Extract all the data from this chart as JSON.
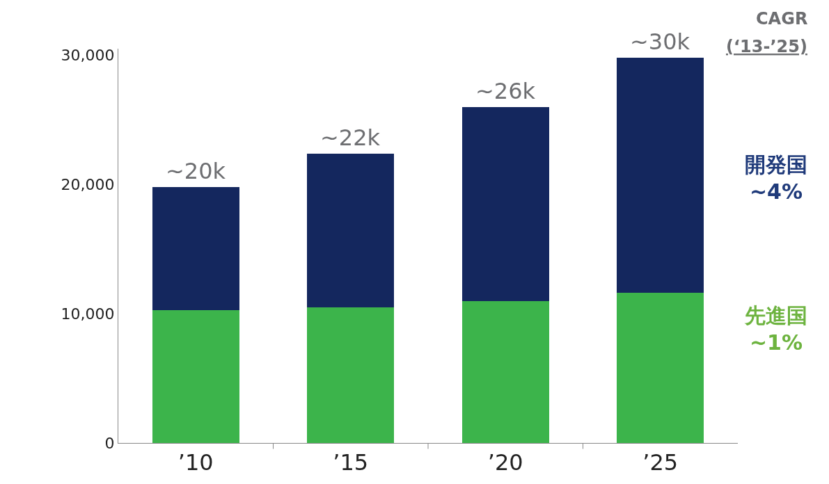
{
  "chart_data": {
    "type": "bar",
    "stacked": true,
    "categories": [
      "’10",
      "’15",
      "’20",
      "’25"
    ],
    "series": [
      {
        "name": "先進国",
        "color": "#3cb44b",
        "values": [
          10300,
          10500,
          11000,
          11600
        ]
      },
      {
        "name": "開発国",
        "color": "#14275e",
        "values": [
          9500,
          11900,
          15000,
          18200
        ]
      }
    ],
    "totals": [
      "~20k",
      "~22k",
      "~26k",
      "~30k"
    ],
    "ylim": [
      0,
      30500
    ],
    "yticks": [
      {
        "value": 0,
        "label": "0"
      },
      {
        "value": 10000,
        "label": "10,000"
      },
      {
        "value": 20000,
        "label": "20,000"
      },
      {
        "value": 30000,
        "label": "30,000"
      }
    ],
    "legend": false,
    "annotations": [
      "CAGR",
      "(‘13-’25)",
      "~1%",
      "~4%"
    ]
  }
}
